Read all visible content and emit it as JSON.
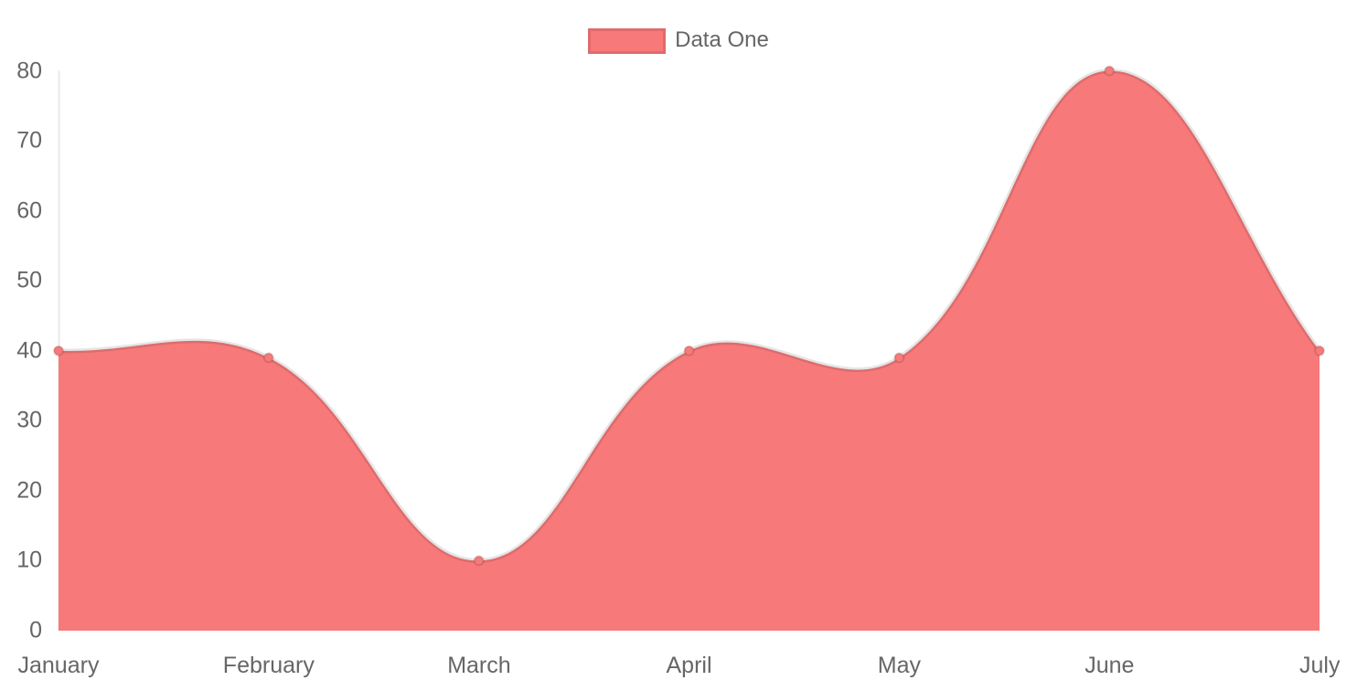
{
  "chart_data": {
    "type": "area",
    "title": "",
    "categories": [
      "January",
      "February",
      "March",
      "April",
      "May",
      "June",
      "July"
    ],
    "series": [
      {
        "name": "Data One",
        "values": [
          40,
          39,
          10,
          40,
          39,
          80,
          40
        ]
      }
    ],
    "ylim": [
      0,
      80
    ],
    "yticks": [
      0,
      10,
      20,
      30,
      40,
      50,
      60,
      70,
      80
    ],
    "grid": false,
    "legend_position": "top-center",
    "line_tension": 0.4,
    "colors": {
      "fill": "#f87979",
      "line": "rgba(0,0,0,0.1)",
      "point_fill": "#f87979",
      "point_border": "rgba(0,0,0,0.12)",
      "axis_line": "rgba(0,0,0,0.09)",
      "tick_text": "#666666",
      "background": "#ffffff"
    }
  }
}
